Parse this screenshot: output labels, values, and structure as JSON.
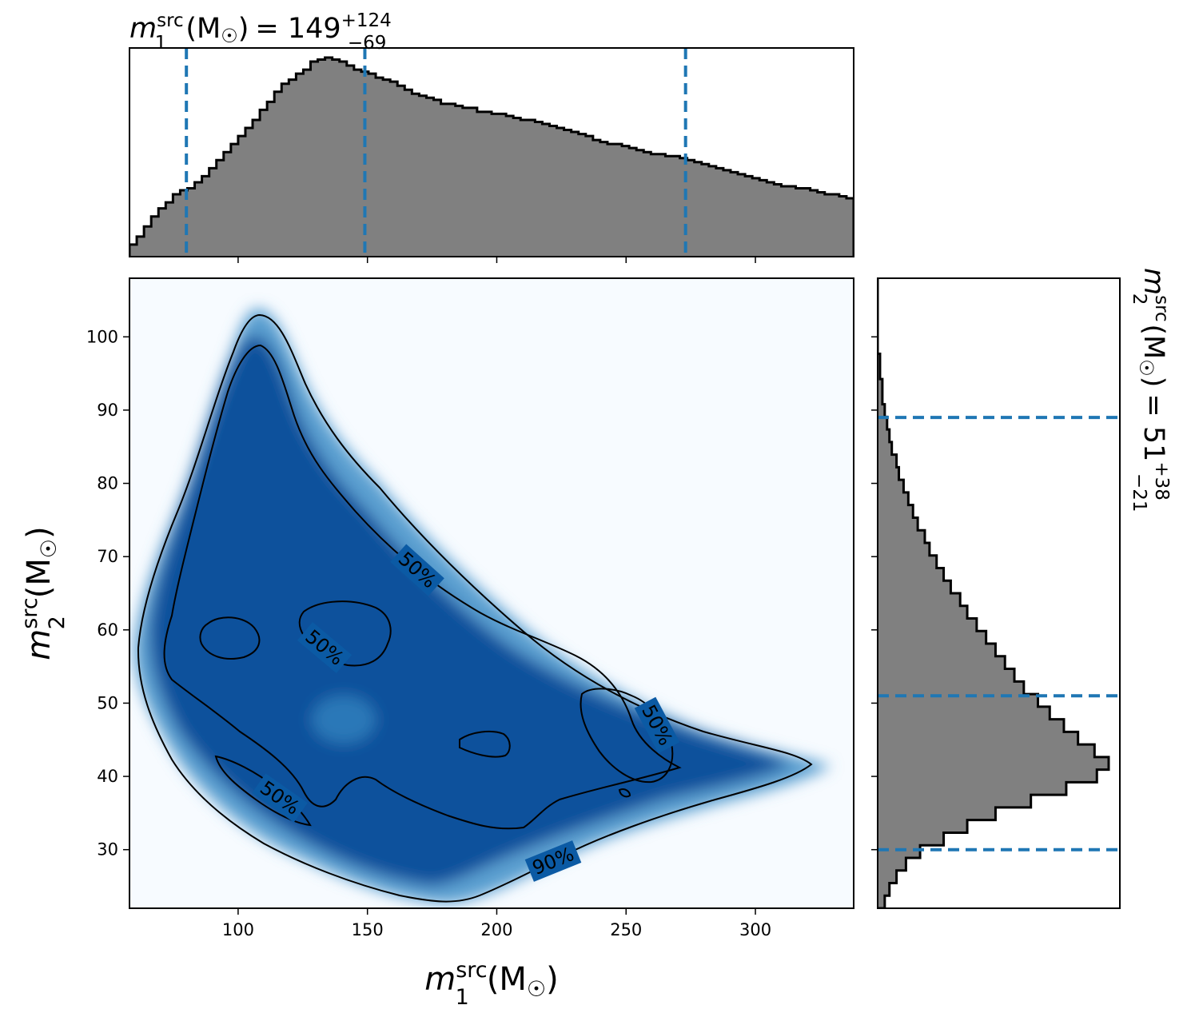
{
  "chart_data": {
    "type": "corner",
    "title_top": {
      "var": "m",
      "sub": "1",
      "sup": "src",
      "unit": "(M",
      "sun": "☉",
      "close": ")",
      "eq": "= 149",
      "plus": "+124",
      "minus": "−69"
    },
    "title_right": {
      "var": "m",
      "sub": "2",
      "sup": "src",
      "unit": "(M",
      "sun": "☉",
      "close": ")",
      "eq": "= 51",
      "plus": "+38",
      "minus": "−21"
    },
    "xlabel": {
      "var": "m",
      "sub": "1",
      "sup": "src",
      "unit": "(M",
      "sun": "☉",
      "close": ")"
    },
    "ylabel": {
      "var": "m",
      "sub": "2",
      "sup": "src",
      "unit": "(M",
      "sun": "☉",
      "close": ")"
    },
    "xlim": [
      58,
      338
    ],
    "ylim": [
      22,
      108
    ],
    "x_ticks": [
      100,
      150,
      200,
      250,
      300
    ],
    "y_ticks": [
      30,
      40,
      50,
      60,
      70,
      80,
      90,
      100
    ],
    "m1_quantiles": [
      80,
      149,
      273
    ],
    "m2_quantiles": [
      30,
      51,
      89
    ],
    "contour_labels": [
      "50%",
      "50%",
      "50%",
      "50%",
      "50%",
      "90%"
    ],
    "colors": {
      "hist_fill": "#808080",
      "quantile_line": "#1f77b4",
      "density_low": "#f7fbff",
      "density_high": "#08519c"
    },
    "m1_hist": {
      "bin_start": 58,
      "bin_width": 2.8,
      "counts": [
        6,
        10,
        15,
        20,
        24,
        27,
        31,
        33,
        34,
        37,
        40,
        44,
        48,
        52,
        56,
        60,
        64,
        68,
        73,
        77,
        82,
        86,
        88,
        91,
        93,
        97,
        98,
        99,
        98,
        97,
        95,
        93,
        92,
        91,
        89,
        88,
        87,
        85,
        83,
        81,
        80,
        79,
        78,
        76,
        76,
        75,
        74,
        74,
        72,
        72,
        71,
        71,
        70,
        69,
        68,
        68,
        67,
        66,
        65,
        64,
        63,
        62,
        61,
        60,
        58,
        57,
        56,
        56,
        55,
        54,
        53,
        52,
        51,
        51,
        50,
        50,
        49,
        48,
        47,
        46,
        45,
        44,
        43,
        42,
        41,
        40,
        39,
        38,
        37,
        36,
        35,
        35,
        34,
        34,
        33,
        32,
        31,
        31,
        30,
        29
      ]
    },
    "m2_hist": {
      "bin_start": 22,
      "bin_width": 1.72,
      "counts": [
        3,
        5,
        8,
        12,
        18,
        28,
        38,
        50,
        65,
        80,
        93,
        98,
        92,
        85,
        79,
        73,
        68,
        62,
        58,
        54,
        50,
        46,
        42,
        38,
        35,
        31,
        28,
        25,
        22,
        20,
        17,
        15,
        13,
        11,
        9,
        8,
        6,
        5,
        4,
        3,
        2,
        2,
        1,
        1,
        0,
        0,
        0,
        0,
        0,
        0
      ]
    }
  }
}
